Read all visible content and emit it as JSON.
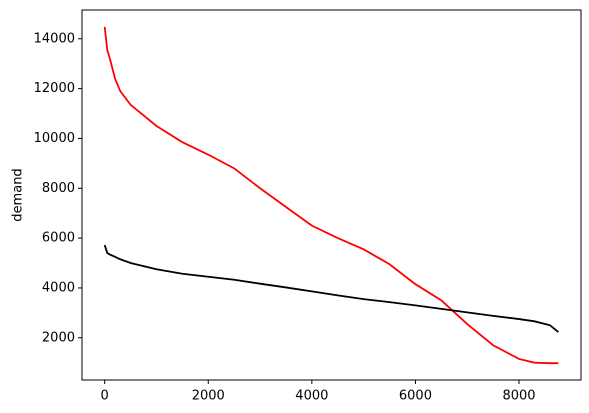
{
  "chart_data": {
    "type": "line",
    "ylabel": "demand",
    "x": [
      0,
      50,
      100,
      200,
      300,
      500,
      1000,
      1500,
      2000,
      2500,
      3000,
      3500,
      4000,
      4500,
      5000,
      5500,
      6000,
      6500,
      7000,
      7500,
      8000,
      8300,
      8600,
      8759
    ],
    "series": [
      {
        "color": "#ff0000",
        "values": [
          14480,
          13550,
          13200,
          12400,
          11900,
          11350,
          10500,
          9850,
          9350,
          8800,
          8000,
          7250,
          6500,
          6000,
          5550,
          4950,
          4150,
          3500,
          2550,
          1700,
          1150,
          1000,
          980,
          980
        ]
      },
      {
        "color": "#000000",
        "values": [
          5720,
          5400,
          5340,
          5250,
          5150,
          5000,
          4750,
          4570,
          4450,
          4330,
          4170,
          4020,
          3860,
          3700,
          3550,
          3430,
          3300,
          3160,
          3020,
          2880,
          2750,
          2660,
          2500,
          2230
        ]
      }
    ],
    "xlim": [
      -438,
      9197
    ],
    "xticks": [
      0,
      2000,
      4000,
      6000,
      8000
    ],
    "ylim": [
      305,
      15155
    ],
    "yticks": [
      2000,
      4000,
      6000,
      8000,
      10000,
      12000,
      14000
    ],
    "grid": false
  }
}
